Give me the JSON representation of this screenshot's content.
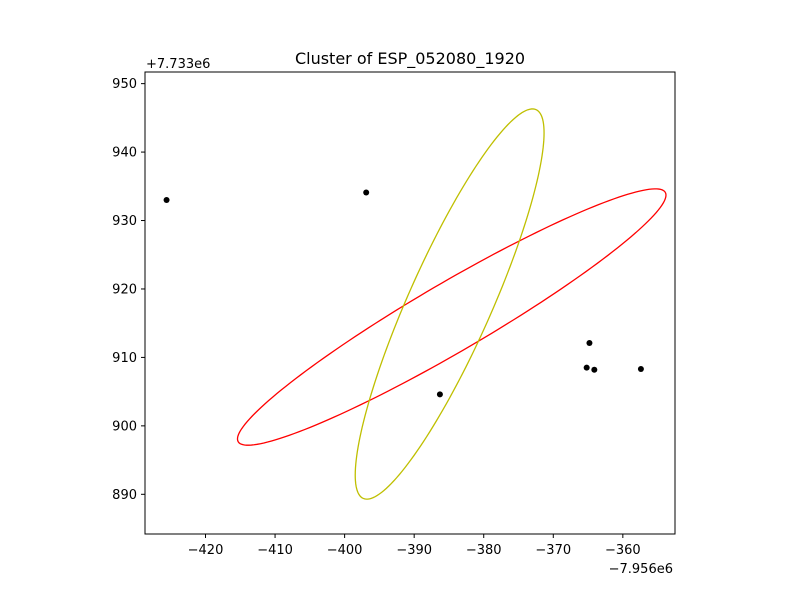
{
  "chart_data": {
    "type": "scatter",
    "title": "Cluster of ESP_052080_1920",
    "xlabel": "",
    "ylabel": "",
    "x_offset_label": "−7.956e6",
    "y_offset_label": "+7.733e6",
    "xlim": [
      -428.7,
      -352.5
    ],
    "ylim": [
      884.2,
      951.7
    ],
    "xticks": [
      -420,
      -410,
      -400,
      -390,
      -380,
      -370,
      -360
    ],
    "yticks": [
      890,
      900,
      910,
      920,
      930,
      940,
      950
    ],
    "xtick_labels": [
      "−420",
      "−410",
      "−400",
      "−390",
      "−380",
      "−370",
      "−360"
    ],
    "ytick_labels": [
      "890",
      "900",
      "910",
      "920",
      "930",
      "940",
      "950"
    ],
    "grid": false,
    "points": {
      "color": "#000000",
      "x": [
        -425.6,
        -396.9,
        -386.3,
        -365.2,
        -364.8,
        -364.1,
        -357.4
      ],
      "y": [
        933.0,
        934.1,
        904.6,
        908.5,
        912.1,
        908.2,
        908.3
      ]
    },
    "ellipses": [
      {
        "color": "#ff0000",
        "cx": -384.6,
        "cy": 915.9,
        "semi_major": 35.7,
        "semi_minor": 5.0,
        "angle_deg": 30.7
      },
      {
        "color": "#bfbf00",
        "cx": -384.9,
        "cy": 917.8,
        "semi_major": 31.0,
        "semi_minor": 6.0,
        "angle_deg": 66.4
      }
    ]
  }
}
